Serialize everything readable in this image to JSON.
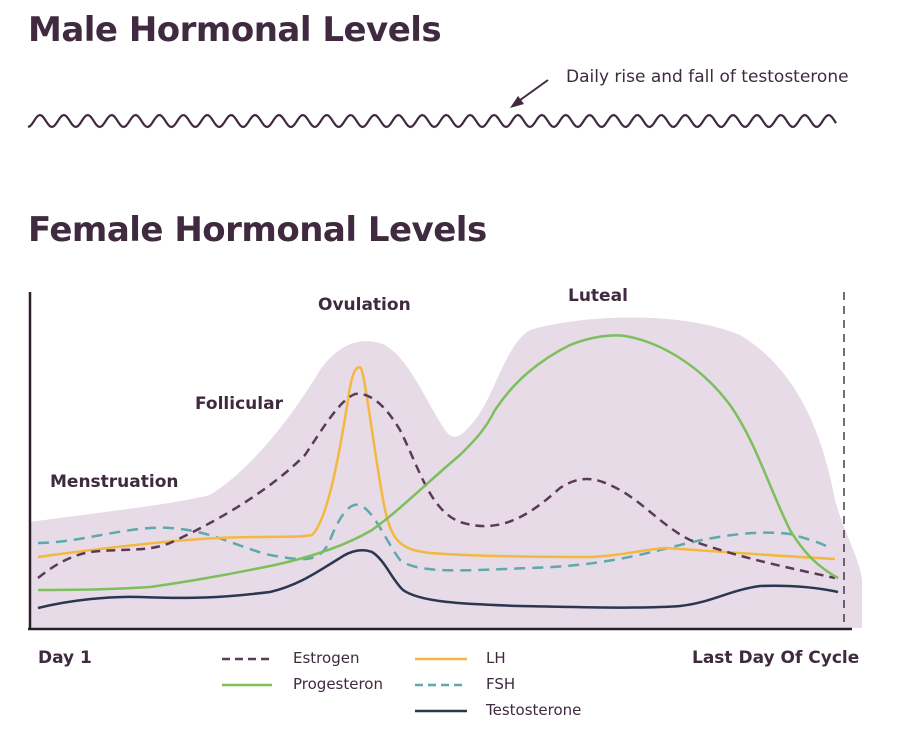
{
  "male": {
    "title": "Male Hormonal Levels",
    "note": "Daily rise and fall of testosterone"
  },
  "female": {
    "title": "Female Hormonal Levels",
    "phases": [
      "Menstruation",
      "Follicular",
      "Ovulation",
      "Luteal"
    ],
    "axis_start": "Day 1",
    "axis_end": "Last Day Of Cycle"
  },
  "legend": [
    {
      "name": "Estrogen",
      "color": "#5b3a55",
      "style": "dashed"
    },
    {
      "name": "LH",
      "color": "#f4b840",
      "style": "solid"
    },
    {
      "name": "Progesteron",
      "color": "#7cbf5c",
      "style": "solid"
    },
    {
      "name": "FSH",
      "color": "#5fa8ad",
      "style": "dashed"
    },
    {
      "name": "Testosterone",
      "color": "#2b3650",
      "style": "solid"
    }
  ],
  "colors": {
    "text": "#3f2a3f",
    "envelope": "#e6dbe7",
    "axis": "#2a1f2a"
  }
}
